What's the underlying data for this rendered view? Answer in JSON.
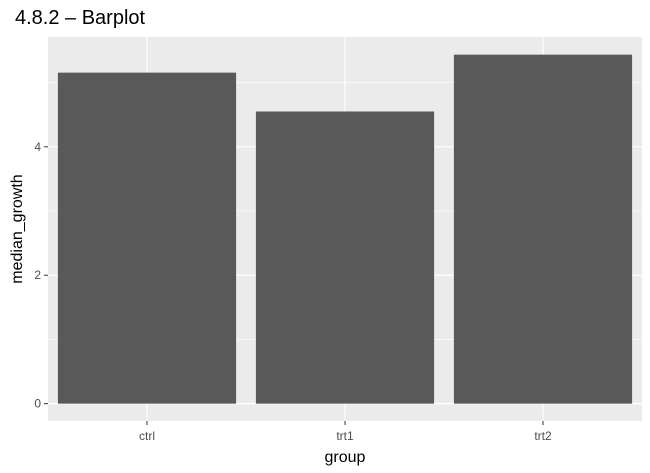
{
  "chart_data": {
    "type": "bar",
    "title": "4.8.2 – Barplot",
    "xlabel": "group",
    "ylabel": "median_growth",
    "categories": [
      "ctrl",
      "trt1",
      "trt2"
    ],
    "values": [
      5.155,
      4.55,
      5.435
    ],
    "ylim": [
      -0.27,
      5.71
    ],
    "yticks": [
      0,
      2,
      4
    ],
    "ytick_labels": [
      "0",
      "2",
      "4"
    ],
    "grid": true,
    "colors": {
      "bar": "#595959",
      "panel": "#ebebeb",
      "gridline": "#ffffff",
      "tick_text": "#4d4d4d",
      "tick_mark": "#333333"
    }
  }
}
